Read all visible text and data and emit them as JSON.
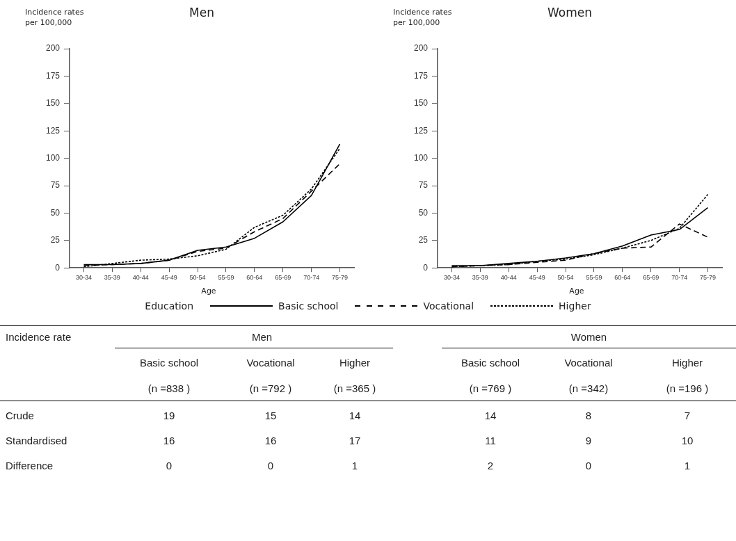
{
  "chart_data": [
    {
      "type": "line",
      "title": "Men",
      "ylabel": "Incidence rates per 100,000",
      "xlabel": "Age",
      "legend_title": "Education",
      "legend": "bottom",
      "categories": [
        "30-34",
        "35-39",
        "40-44",
        "45-49",
        "50-54",
        "55-59",
        "60-64",
        "65-69",
        "70-74",
        "75-79"
      ],
      "ylim": [
        0,
        200
      ],
      "yticks": [
        0,
        25,
        50,
        75,
        100,
        125,
        150,
        175,
        200
      ],
      "grid": false,
      "marker": "none",
      "series": [
        {
          "name": "Basic school",
          "color": "#000000",
          "line_style": "solid",
          "values": [
            3,
            3,
            4,
            7,
            16,
            19,
            27,
            42,
            66,
            113
          ]
        },
        {
          "name": "Vocational",
          "color": "#000000",
          "line_style": "dashed",
          "values": [
            2,
            3,
            4,
            7,
            15,
            18,
            33,
            45,
            70,
            95
          ]
        },
        {
          "name": "Higher",
          "color": "#000000",
          "line_style": "dotted",
          "values": [
            1,
            4,
            7,
            8,
            11,
            17,
            37,
            48,
            72,
            109
          ]
        }
      ]
    },
    {
      "type": "line",
      "title": "Women",
      "ylabel": "Incidence rates per 100,000",
      "xlabel": "Age",
      "categories": [
        "30-34",
        "35-39",
        "40-44",
        "45-49",
        "50-54",
        "55-59",
        "60-64",
        "65-69",
        "70-74",
        "75-79"
      ],
      "ylim": [
        0,
        200
      ],
      "yticks": [
        0,
        25,
        50,
        75,
        100,
        125,
        150,
        175,
        200
      ],
      "grid": false,
      "marker": "none",
      "series": [
        {
          "color": "#000000",
          "line_style": "solid",
          "values": [
            2,
            2,
            4,
            6,
            9,
            13,
            20,
            30,
            35,
            55
          ]
        },
        {
          "color": "#000000",
          "line_style": "dashed",
          "values": [
            1,
            2,
            3,
            5,
            7,
            13,
            18,
            19,
            40,
            28
          ]
        },
        {
          "color": "#000000",
          "line_style": "dotted",
          "values": [
            1,
            2,
            3,
            6,
            8,
            12,
            18,
            25,
            36,
            67
          ]
        }
      ]
    },
    {
      "type": "other",
      "annotations": [
        "Incidence rate",
        "Men",
        "Women",
        "Basic school",
        "Vocational",
        "Higher",
        "Basic school",
        "Vocational",
        "Higher",
        "(n =838 )",
        "(n =792 )",
        "(n =365 )",
        "(n =769 )",
        "(n =342)",
        "(n =196 )",
        "Crude",
        "19",
        "15",
        "14",
        "14",
        "8",
        "7",
        "Standardised",
        "16",
        "16",
        "17",
        "11",
        "9",
        "10",
        "Difference",
        "0",
        "0",
        "1",
        "2",
        "0",
        "1"
      ]
    }
  ]
}
